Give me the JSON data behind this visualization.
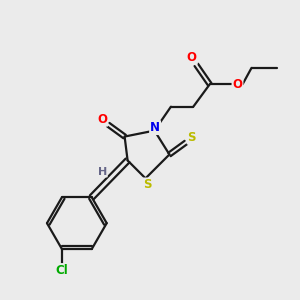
{
  "bg_color": "#ebebeb",
  "bond_color": "#1a1a1a",
  "atom_colors": {
    "O": "#ff0000",
    "N": "#0000ee",
    "S": "#bbbb00",
    "Cl": "#00aa00",
    "H": "#666688",
    "C": "#1a1a1a"
  },
  "line_width": 1.6,
  "figsize": [
    3.0,
    3.0
  ],
  "dpi": 100
}
